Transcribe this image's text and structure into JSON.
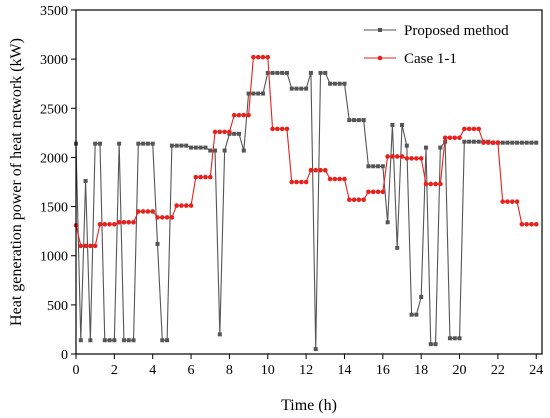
{
  "chart_data": {
    "type": "line",
    "xlabel": "Time (h)",
    "ylabel": "Heat generation power of heat network (kW)",
    "xlim": [
      0,
      24.3
    ],
    "ylim": [
      0,
      3500
    ],
    "xticks": [
      0,
      2,
      4,
      6,
      8,
      10,
      12,
      14,
      16,
      18,
      20,
      22,
      24
    ],
    "yticks": [
      0,
      500,
      1000,
      1500,
      2000,
      2500,
      3000,
      3500
    ],
    "legend_position": "top-right",
    "grid": false,
    "series": [
      {
        "name": "Proposed method",
        "color": "#555555",
        "marker": "square",
        "x": [
          0,
          0.25,
          0.5,
          0.75,
          1,
          1.25,
          1.5,
          1.75,
          2,
          2.25,
          2.5,
          2.75,
          3,
          3.25,
          3.5,
          3.75,
          4,
          4.25,
          4.5,
          4.75,
          5,
          5.25,
          5.5,
          5.75,
          6,
          6.25,
          6.5,
          6.75,
          7,
          7.25,
          7.5,
          7.75,
          8,
          8.25,
          8.5,
          8.75,
          9,
          9.25,
          9.5,
          9.75,
          10,
          10.25,
          10.5,
          10.75,
          11,
          11.25,
          11.5,
          11.75,
          12,
          12.25,
          12.5,
          12.75,
          13,
          13.25,
          13.5,
          13.75,
          14,
          14.25,
          14.5,
          14.75,
          15,
          15.25,
          15.5,
          15.75,
          16,
          16.25,
          16.5,
          16.75,
          17,
          17.25,
          17.5,
          17.75,
          18,
          18.25,
          18.5,
          18.75,
          19,
          19.25,
          19.5,
          19.75,
          20,
          20.25,
          20.5,
          20.75,
          21,
          21.25,
          21.5,
          21.75,
          22,
          22.25,
          22.5,
          22.75,
          23,
          23.25,
          23.5,
          23.75,
          24
        ],
        "values": [
          2140,
          140,
          1760,
          140,
          2140,
          2140,
          140,
          140,
          140,
          2140,
          140,
          140,
          140,
          2140,
          2140,
          2140,
          2140,
          1120,
          140,
          140,
          2120,
          2120,
          2120,
          2120,
          2100,
          2100,
          2100,
          2100,
          2070,
          2070,
          200,
          2070,
          2240,
          2240,
          2240,
          2070,
          2650,
          2650,
          2650,
          2650,
          2860,
          2860,
          2860,
          2860,
          2860,
          2700,
          2700,
          2700,
          2700,
          2860,
          50,
          2860,
          2860,
          2750,
          2750,
          2750,
          2750,
          2380,
          2380,
          2380,
          2380,
          1910,
          1910,
          1910,
          1910,
          1340,
          2330,
          1080,
          2330,
          2120,
          400,
          400,
          580,
          2100,
          100,
          100,
          2100,
          2160,
          160,
          160,
          160,
          2160,
          2160,
          2160,
          2160,
          2160,
          2160,
          2150,
          2150,
          2150,
          2150,
          2150,
          2150,
          2150,
          2150,
          2150,
          2150
        ]
      },
      {
        "name": "Case 1-1",
        "color": "#e8211d",
        "marker": "circle",
        "x": [
          0,
          0.25,
          0.5,
          0.75,
          1,
          1.25,
          1.5,
          1.75,
          2,
          2.25,
          2.5,
          2.75,
          3,
          3.25,
          3.5,
          3.75,
          4,
          4.25,
          4.5,
          4.75,
          5,
          5.25,
          5.5,
          5.75,
          6,
          6.25,
          6.5,
          6.75,
          7,
          7.25,
          7.5,
          7.75,
          8,
          8.25,
          8.5,
          8.75,
          9,
          9.25,
          9.5,
          9.75,
          10,
          10.25,
          10.5,
          10.75,
          11,
          11.25,
          11.5,
          11.75,
          12,
          12.25,
          12.5,
          12.75,
          13,
          13.25,
          13.5,
          13.75,
          14,
          14.25,
          14.5,
          14.75,
          15,
          15.25,
          15.5,
          15.75,
          16,
          16.25,
          16.5,
          16.75,
          17,
          17.25,
          17.5,
          17.75,
          18,
          18.25,
          18.5,
          18.75,
          19,
          19.25,
          19.5,
          19.75,
          20,
          20.25,
          20.5,
          20.75,
          21,
          21.25,
          21.5,
          21.75,
          22,
          22.25,
          22.5,
          22.75,
          23,
          23.25,
          23.5,
          23.75,
          24
        ],
        "values": [
          1310,
          1100,
          1100,
          1100,
          1100,
          1320,
          1320,
          1320,
          1320,
          1340,
          1340,
          1340,
          1340,
          1450,
          1450,
          1450,
          1450,
          1390,
          1390,
          1390,
          1390,
          1510,
          1510,
          1510,
          1510,
          1800,
          1800,
          1800,
          1800,
          2260,
          2260,
          2260,
          2260,
          2430,
          2430,
          2430,
          2430,
          3020,
          3020,
          3020,
          3020,
          2290,
          2290,
          2290,
          2290,
          1750,
          1750,
          1750,
          1750,
          1870,
          1870,
          1870,
          1870,
          1780,
          1780,
          1780,
          1780,
          1570,
          1570,
          1570,
          1570,
          1650,
          1650,
          1650,
          1650,
          2010,
          2010,
          2010,
          2010,
          1990,
          1990,
          1990,
          1990,
          1730,
          1730,
          1730,
          1730,
          2200,
          2200,
          2200,
          2200,
          2290,
          2290,
          2290,
          2290,
          2150,
          2150,
          2150,
          2150,
          1550,
          1550,
          1550,
          1550,
          1320,
          1320,
          1320,
          1320
        ]
      }
    ]
  }
}
